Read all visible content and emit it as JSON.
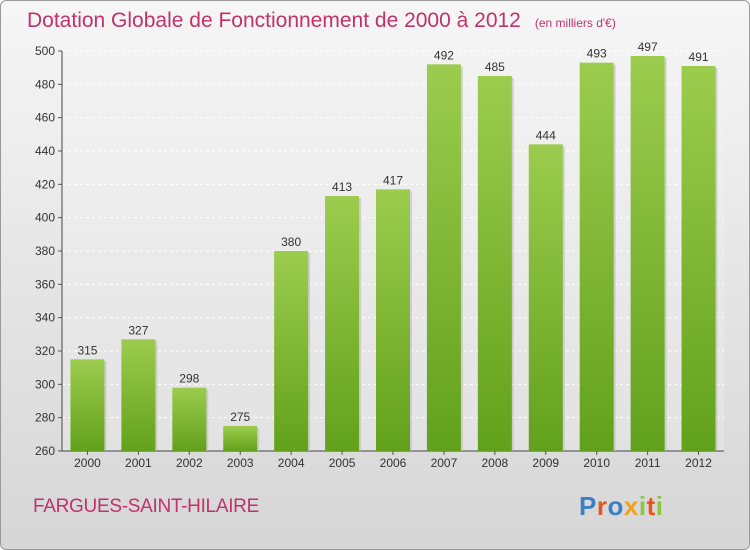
{
  "chart_data": {
    "type": "bar",
    "title": "Dotation Globale de Fonctionnement de 2000 à 2012",
    "subtitle": "(en milliers d'€)",
    "categories": [
      "2000",
      "2001",
      "2002",
      "2003",
      "2004",
      "2005",
      "2006",
      "2007",
      "2008",
      "2009",
      "2010",
      "2011",
      "2012"
    ],
    "values": [
      315,
      327,
      298,
      275,
      380,
      413,
      417,
      492,
      485,
      444,
      493,
      497,
      491
    ],
    "ylim": [
      260,
      500
    ],
    "yticks": [
      260,
      280,
      300,
      320,
      340,
      360,
      380,
      400,
      420,
      440,
      460,
      480,
      500
    ],
    "grid": true,
    "legend": "none",
    "colors": {
      "bar_top": "#9ccc4e",
      "bar_bottom": "#62a11c",
      "title": "#c0326a"
    }
  },
  "footer": {
    "commune": "FARGUES-SAINT-HILAIRE",
    "logo": "Proxiti"
  }
}
